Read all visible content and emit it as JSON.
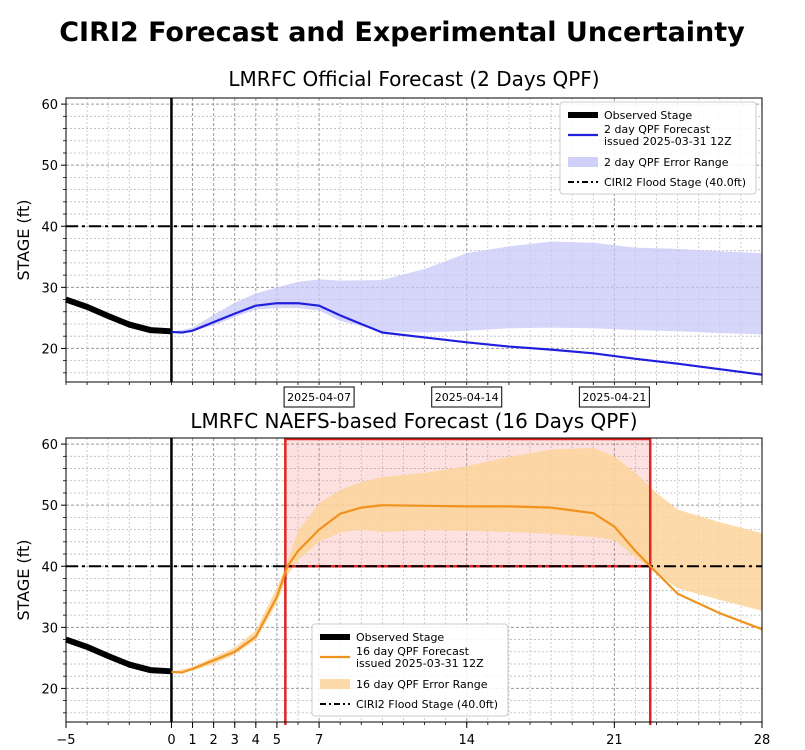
{
  "figure_title": "CIRI2 Forecast and Experimental Uncertainty",
  "chart_data": [
    {
      "type": "line",
      "title": "LMRFC Official Forecast (2 Days QPF)",
      "ylabel": "STAGE (ft)",
      "xlabel": "",
      "xlim": [
        -5,
        28
      ],
      "ylim": [
        14.5,
        61
      ],
      "yticks": [
        20,
        30,
        40,
        50,
        60
      ],
      "date_labels": [
        {
          "x": 7,
          "label": "2025-04-07"
        },
        {
          "x": 14,
          "label": "2025-04-14"
        },
        {
          "x": 21,
          "label": "2025-04-21"
        }
      ],
      "grid": true,
      "legend_location": "upper right",
      "legend": [
        "Observed Stage",
        "2 day QPF Forecast\nissued 2025-03-31 12Z",
        "2 day QPF Error Range",
        "CIRI2 Flood Stage (40.0ft)"
      ],
      "flood_stage": 40.0,
      "now_x": 0,
      "series": [
        {
          "name": "Observed Stage",
          "color": "#000000",
          "x": [
            -5,
            -4,
            -3,
            -2,
            -1,
            0
          ],
          "y": [
            28,
            26.8,
            25.3,
            23.9,
            23.0,
            22.8
          ]
        },
        {
          "name": "2 day QPF Forecast",
          "color": "#1f1fdd",
          "x": [
            0,
            0.5,
            1,
            2,
            3,
            4,
            5,
            6,
            7,
            8,
            9,
            10,
            12,
            14,
            16,
            18,
            20,
            22,
            24,
            26,
            28
          ],
          "y": [
            22.7,
            22.6,
            22.9,
            24.3,
            25.7,
            27.0,
            27.4,
            27.4,
            27.0,
            25.4,
            24.0,
            22.6,
            21.8,
            21.0,
            20.3,
            19.8,
            19.2,
            18.3,
            17.5,
            16.6,
            15.7
          ]
        },
        {
          "name": "2 day QPF Error Range",
          "color": "#c8c8f8",
          "x": [
            0,
            1,
            2,
            3,
            4,
            5,
            6,
            7,
            8,
            10,
            12,
            14,
            16,
            18,
            20,
            22,
            24,
            26,
            28
          ],
          "lower": [
            22.7,
            22.8,
            23.8,
            25.1,
            26.4,
            26.6,
            26.6,
            26.2,
            24.5,
            22.8,
            22.6,
            22.9,
            23.3,
            23.4,
            23.3,
            23.0,
            22.8,
            22.5,
            22.3
          ],
          "upper": [
            22.7,
            23.4,
            25.5,
            27.5,
            29.0,
            30.0,
            30.9,
            31.3,
            31.1,
            31.2,
            33.0,
            35.6,
            36.7,
            37.5,
            37.3,
            36.5,
            36.3,
            35.9,
            35.6
          ]
        }
      ]
    },
    {
      "type": "line",
      "title": "LMRFC NAEFS-based Forecast (16 Days QPF)",
      "ylabel": "STAGE (ft)",
      "xlabel": "",
      "xlim": [
        -5,
        28
      ],
      "ylim": [
        14.5,
        61
      ],
      "yticks": [
        20,
        30,
        40,
        50,
        60
      ],
      "xticks": [
        -5,
        0,
        1,
        2,
        3,
        4,
        5,
        7,
        14,
        21,
        28
      ],
      "xtick_labels": [
        "−5",
        "0",
        "1",
        "2",
        "3",
        "4",
        "5",
        "7",
        "14",
        "21",
        "28"
      ],
      "grid": true,
      "legend_location": "lower center",
      "legend": [
        "Observed Stage",
        "16 day QPF Forecast\nissued 2025-03-31 12Z",
        "16 day QPF Error Range",
        "CIRI2 Flood Stage (40.0ft)"
      ],
      "flood_stage": 40.0,
      "now_x": 0,
      "highlight_region": {
        "x0": 5.4,
        "x1": 22.7,
        "y0": 40,
        "y1": 61
      },
      "series": [
        {
          "name": "Observed Stage",
          "color": "#000000",
          "x": [
            -5,
            -4,
            -3,
            -2,
            -1,
            0
          ],
          "y": [
            28,
            26.8,
            25.3,
            23.9,
            23.0,
            22.8
          ]
        },
        {
          "name": "16 day QPF Forecast",
          "color": "#f0921e",
          "x": [
            0,
            0.5,
            1,
            2,
            3,
            4,
            5,
            5.5,
            6,
            7,
            8,
            9,
            10,
            12,
            14,
            16,
            18,
            20,
            21,
            22,
            22.7,
            24,
            26,
            28
          ],
          "y": [
            22.7,
            22.6,
            23.2,
            24.6,
            26.0,
            28.5,
            35.0,
            40.0,
            42.5,
            46.0,
            48.6,
            49.6,
            50.0,
            49.9,
            49.8,
            49.8,
            49.6,
            48.7,
            46.5,
            42.5,
            40.0,
            35.5,
            32.3,
            29.7
          ]
        },
        {
          "name": "16 day QPF Error Range",
          "color": "#fbd49a",
          "x": [
            0,
            1,
            2,
            3,
            4,
            5,
            5.5,
            6,
            7,
            8,
            9,
            10,
            12,
            14,
            16,
            18,
            20,
            21,
            22,
            23,
            24,
            26,
            28
          ],
          "lower": [
            22.7,
            22.9,
            24.0,
            25.6,
            27.9,
            34.0,
            38.5,
            41.0,
            44.0,
            45.5,
            46.0,
            45.6,
            45.9,
            45.8,
            45.6,
            45.3,
            44.8,
            44.3,
            41.5,
            38.8,
            36.4,
            34.5,
            32.7
          ],
          "upper": [
            22.7,
            23.5,
            25.1,
            26.7,
            29.5,
            36.5,
            40.8,
            45.8,
            50.3,
            52.5,
            53.8,
            54.6,
            55.3,
            56.4,
            57.9,
            59.1,
            59.4,
            58.0,
            55.3,
            52.0,
            49.3,
            47.2,
            45.4
          ]
        }
      ]
    }
  ]
}
